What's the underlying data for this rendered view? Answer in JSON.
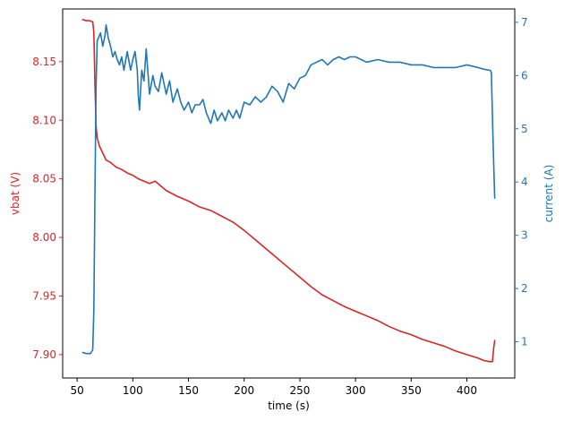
{
  "chart_data": {
    "type": "line",
    "xlabel": "time (s)",
    "ylabel_left": "vbat (V)",
    "ylabel_right": "current (A)",
    "xlim": [
      37,
      443
    ],
    "ylim_left": [
      7.88,
      8.195
    ],
    "ylim_right": [
      0.32,
      7.25
    ],
    "x_ticks": [
      50,
      100,
      150,
      200,
      250,
      300,
      350,
      400
    ],
    "y_left_ticks": [
      7.9,
      7.95,
      8.0,
      8.05,
      8.1,
      8.15
    ],
    "y_left_tick_labels": [
      "7.90",
      "7.95",
      "8.00",
      "8.05",
      "8.10",
      "8.15"
    ],
    "y_right_ticks": [
      1,
      2,
      3,
      4,
      5,
      6,
      7
    ],
    "grid": false,
    "legend": "none",
    "colors": {
      "left": "#d62728",
      "right": "#1f77b4"
    },
    "series": [
      {
        "axis": "left",
        "color": "#d62728",
        "x": [
          55,
          58,
          61,
          64,
          65,
          66,
          67,
          68,
          70,
          73,
          76,
          80,
          85,
          90,
          95,
          100,
          105,
          110,
          115,
          120,
          125,
          130,
          140,
          150,
          160,
          170,
          180,
          190,
          200,
          210,
          220,
          230,
          240,
          250,
          260,
          270,
          280,
          290,
          300,
          310,
          320,
          330,
          340,
          350,
          360,
          370,
          380,
          390,
          400,
          410,
          415,
          420,
          423,
          424,
          425
        ],
        "y": [
          8.186,
          8.185,
          8.185,
          8.184,
          8.175,
          8.13,
          8.095,
          8.085,
          8.078,
          8.072,
          8.066,
          8.064,
          8.06,
          8.058,
          8.055,
          8.053,
          8.05,
          8.048,
          8.046,
          8.048,
          8.044,
          8.04,
          8.035,
          8.031,
          8.026,
          8.023,
          8.018,
          8.013,
          8.006,
          7.998,
          7.99,
          7.982,
          7.974,
          7.966,
          7.958,
          7.951,
          7.946,
          7.941,
          7.937,
          7.933,
          7.929,
          7.924,
          7.92,
          7.917,
          7.913,
          7.91,
          7.907,
          7.903,
          7.9,
          7.897,
          7.895,
          7.894,
          7.894,
          7.905,
          7.912
        ]
      },
      {
        "axis": "right",
        "color": "#1f77b4",
        "x": [
          55,
          58,
          62,
          64,
          65,
          66,
          67,
          68,
          69,
          71,
          73,
          75,
          76,
          78,
          80,
          82,
          84,
          86,
          88,
          90,
          92,
          95,
          98,
          100,
          102,
          104,
          105,
          106,
          108,
          110,
          112,
          115,
          118,
          120,
          123,
          126,
          130,
          133,
          136,
          140,
          143,
          146,
          150,
          153,
          156,
          160,
          163,
          166,
          170,
          173,
          176,
          180,
          183,
          186,
          190,
          193,
          196,
          200,
          205,
          210,
          215,
          220,
          225,
          230,
          235,
          240,
          245,
          250,
          255,
          260,
          265,
          270,
          275,
          280,
          285,
          290,
          295,
          300,
          305,
          310,
          320,
          330,
          340,
          350,
          360,
          370,
          380,
          390,
          400,
          410,
          415,
          420,
          421,
          422,
          423,
          424,
          425
        ],
        "y": [
          0.8,
          0.78,
          0.78,
          0.85,
          1.6,
          3.8,
          5.8,
          6.65,
          6.7,
          6.8,
          6.55,
          6.75,
          6.95,
          6.7,
          6.55,
          6.35,
          6.45,
          6.3,
          6.2,
          6.35,
          6.1,
          6.45,
          6.1,
          6.3,
          6.45,
          6.1,
          5.6,
          5.35,
          6.1,
          5.9,
          6.5,
          5.65,
          6.0,
          5.8,
          5.7,
          6.05,
          5.65,
          5.9,
          5.5,
          5.75,
          5.5,
          5.35,
          5.5,
          5.3,
          5.45,
          5.45,
          5.55,
          5.3,
          5.1,
          5.35,
          5.15,
          5.3,
          5.15,
          5.35,
          5.2,
          5.35,
          5.2,
          5.5,
          5.45,
          5.6,
          5.5,
          5.6,
          5.8,
          5.7,
          5.5,
          5.85,
          5.75,
          5.95,
          6.0,
          6.2,
          6.25,
          6.3,
          6.2,
          6.3,
          6.35,
          6.3,
          6.35,
          6.35,
          6.3,
          6.25,
          6.3,
          6.25,
          6.25,
          6.2,
          6.2,
          6.15,
          6.15,
          6.15,
          6.2,
          6.15,
          6.12,
          6.1,
          6.1,
          6.05,
          5.2,
          4.4,
          3.7
        ]
      }
    ]
  }
}
